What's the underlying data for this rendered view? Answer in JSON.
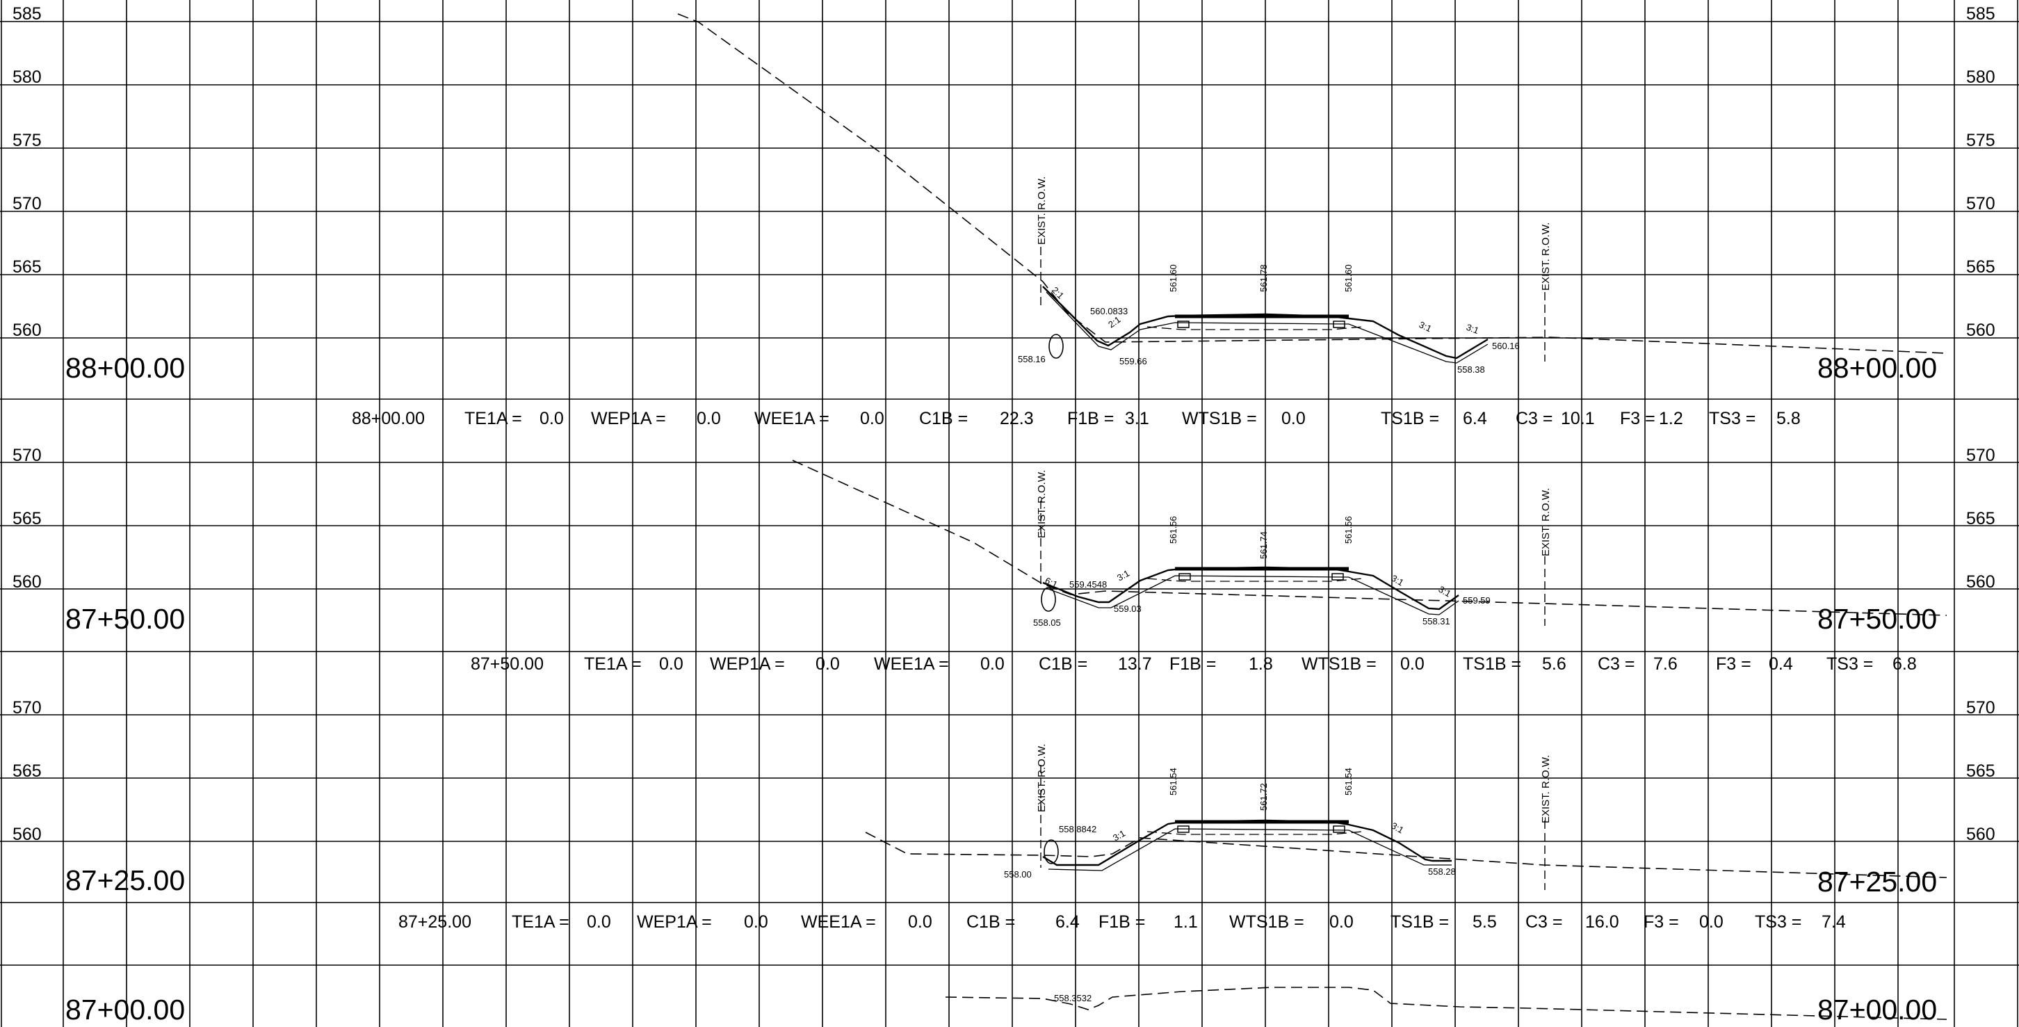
{
  "grid_elevations": {
    "top_band": [
      "585",
      "580",
      "575",
      "570",
      "565",
      "560"
    ],
    "band_8750": [
      "570",
      "565",
      "560"
    ],
    "band_8725": [
      "570",
      "565",
      "560"
    ]
  },
  "sections": [
    {
      "station_left": "88+00.00",
      "station_right": "88+00.00",
      "quantities": [
        {
          "label": "88+00.00",
          "value": ""
        },
        {
          "label": "TE1A =",
          "value": "0.0"
        },
        {
          "label": "WEP1A =",
          "value": "0.0"
        },
        {
          "label": "WEE1A =",
          "value": "0.0"
        },
        {
          "label": "C1B =",
          "value": "22.3"
        },
        {
          "label": "F1B =",
          "value": "3.1"
        },
        {
          "label": "WTS1B =",
          "value": "0.0"
        },
        {
          "label": "TS1B =",
          "value": "6.4"
        },
        {
          "label": "C3 =",
          "value": "10.1"
        },
        {
          "label": "F3 =",
          "value": "1.2"
        },
        {
          "label": "TS3 =",
          "value": "5.8"
        }
      ],
      "row_label": "EXIST. R.O.W.",
      "labels": {
        "left_shoulder": "561.60",
        "centerline": "561.78",
        "right_shoulder": "561.60",
        "ditch_top": "560.0833",
        "left_pt": "558.16",
        "left_ditch": "559.66",
        "right_pt": "560.16",
        "right_ditch": "558.38",
        "slope_a": "2:1",
        "slope_b": "2:1",
        "slope_c": "3:1",
        "slope_d": "3:1"
      }
    },
    {
      "station_left": "87+50.00",
      "station_right": "87+50.00",
      "quantities": [
        {
          "label": "87+50.00",
          "value": ""
        },
        {
          "label": "TE1A =",
          "value": "0.0"
        },
        {
          "label": "WEP1A =",
          "value": "0.0"
        },
        {
          "label": "WEE1A =",
          "value": "0.0"
        },
        {
          "label": "C1B =",
          "value": "13.7"
        },
        {
          "label": "F1B =",
          "value": "1.8"
        },
        {
          "label": "WTS1B =",
          "value": "0.0"
        },
        {
          "label": "TS1B =",
          "value": "5.6"
        },
        {
          "label": "C3 =",
          "value": "7.6"
        },
        {
          "label": "F3 =",
          "value": "0.4"
        },
        {
          "label": "TS3 =",
          "value": "6.8"
        }
      ],
      "row_label": "EXIST. R.O.W.",
      "labels": {
        "left_shoulder": "561.56",
        "centerline": "561.74",
        "right_shoulder": "561.56",
        "ditch_top": "559.4548",
        "left_pt": "558.05",
        "left_ditch": "559.03",
        "right_pt": "559.59",
        "right_ditch": "558.31",
        "slope_a": "6:1",
        "slope_b": "3:1",
        "slope_c": "3:1",
        "slope_d": "3:1"
      }
    },
    {
      "station_left": "87+25.00",
      "station_right": "87+25.00",
      "quantities": [
        {
          "label": "87+25.00",
          "value": ""
        },
        {
          "label": "TE1A =",
          "value": "0.0"
        },
        {
          "label": "WEP1A =",
          "value": "0.0"
        },
        {
          "label": "WEE1A =",
          "value": "0.0"
        },
        {
          "label": "C1B =",
          "value": "6.4"
        },
        {
          "label": "F1B =",
          "value": "1.1"
        },
        {
          "label": "WTS1B =",
          "value": "0.0"
        },
        {
          "label": "TS1B =",
          "value": "5.5"
        },
        {
          "label": "C3 =",
          "value": "16.0"
        },
        {
          "label": "F3 =",
          "value": "0.0"
        },
        {
          "label": "TS3 =",
          "value": "7.4"
        }
      ],
      "row_label": "EXIST. R.O.W.",
      "labels": {
        "left_shoulder": "561.54",
        "centerline": "561.72",
        "right_shoulder": "561.54",
        "ditch_top": "558.8842",
        "left_pt": "558.00",
        "right_ditch": "558.28",
        "slope_a": "3:1",
        "slope_b": "3:1"
      }
    },
    {
      "station_left": "87+00.00",
      "station_right": "87+00.00",
      "labels": {
        "ditch_top": "558.3532"
      }
    }
  ]
}
